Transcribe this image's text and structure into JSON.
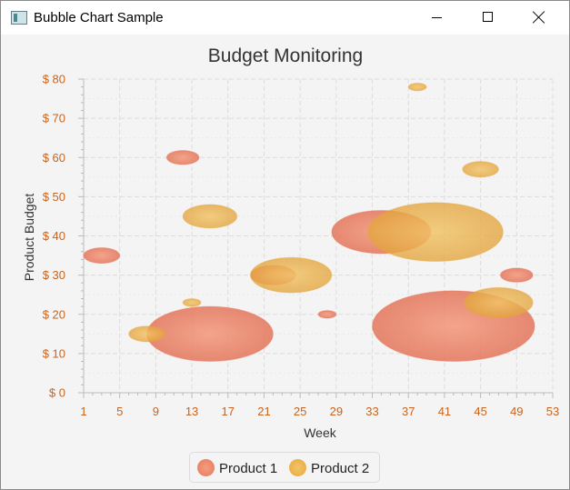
{
  "window": {
    "title": "Bubble Chart Sample"
  },
  "icons": {
    "app": "window-app-icon",
    "minimize": "minimize-icon",
    "maximize": "maximize-icon",
    "close": "close-icon"
  },
  "chart_data": {
    "type": "scatter",
    "subtype": "bubble",
    "title": "Budget Monitoring",
    "xlabel": "Week",
    "ylabel": "Product Budget",
    "xlim": [
      1,
      53
    ],
    "ylim": [
      0,
      80
    ],
    "x_ticks": [
      "1",
      "5",
      "9",
      "13",
      "17",
      "21",
      "25",
      "29",
      "33",
      "37",
      "41",
      "45",
      "49",
      "53"
    ],
    "y_ticks": [
      "$ 0",
      "$ 10",
      "$ 20",
      "$ 30",
      "$ 40",
      "$ 50",
      "$ 60",
      "$ 70",
      "$ 80"
    ],
    "grid": true,
    "legend_position": "bottom",
    "series": [
      {
        "name": "Product 1",
        "color": "#e8785a",
        "points": [
          {
            "x": 3,
            "y": 35,
            "r": 2
          },
          {
            "x": 12,
            "y": 60,
            "r": 1.8
          },
          {
            "x": 15,
            "y": 15,
            "r": 7
          },
          {
            "x": 22,
            "y": 30,
            "r": 2.5
          },
          {
            "x": 28,
            "y": 20,
            "r": 1
          },
          {
            "x": 34,
            "y": 41,
            "r": 5.5
          },
          {
            "x": 42,
            "y": 17,
            "r": 9
          },
          {
            "x": 49,
            "y": 30,
            "r": 1.8
          }
        ]
      },
      {
        "name": "Product 2",
        "color": "#e8a83a",
        "points": [
          {
            "x": 8,
            "y": 15,
            "r": 2
          },
          {
            "x": 13,
            "y": 23,
            "r": 1
          },
          {
            "x": 15,
            "y": 45,
            "r": 3
          },
          {
            "x": 24,
            "y": 30,
            "r": 4.5
          },
          {
            "x": 38,
            "y": 78,
            "r": 1
          },
          {
            "x": 40,
            "y": 41,
            "r": 7.5
          },
          {
            "x": 45,
            "y": 57,
            "r": 2
          },
          {
            "x": 47,
            "y": 23,
            "r": 3.8
          }
        ]
      }
    ]
  }
}
